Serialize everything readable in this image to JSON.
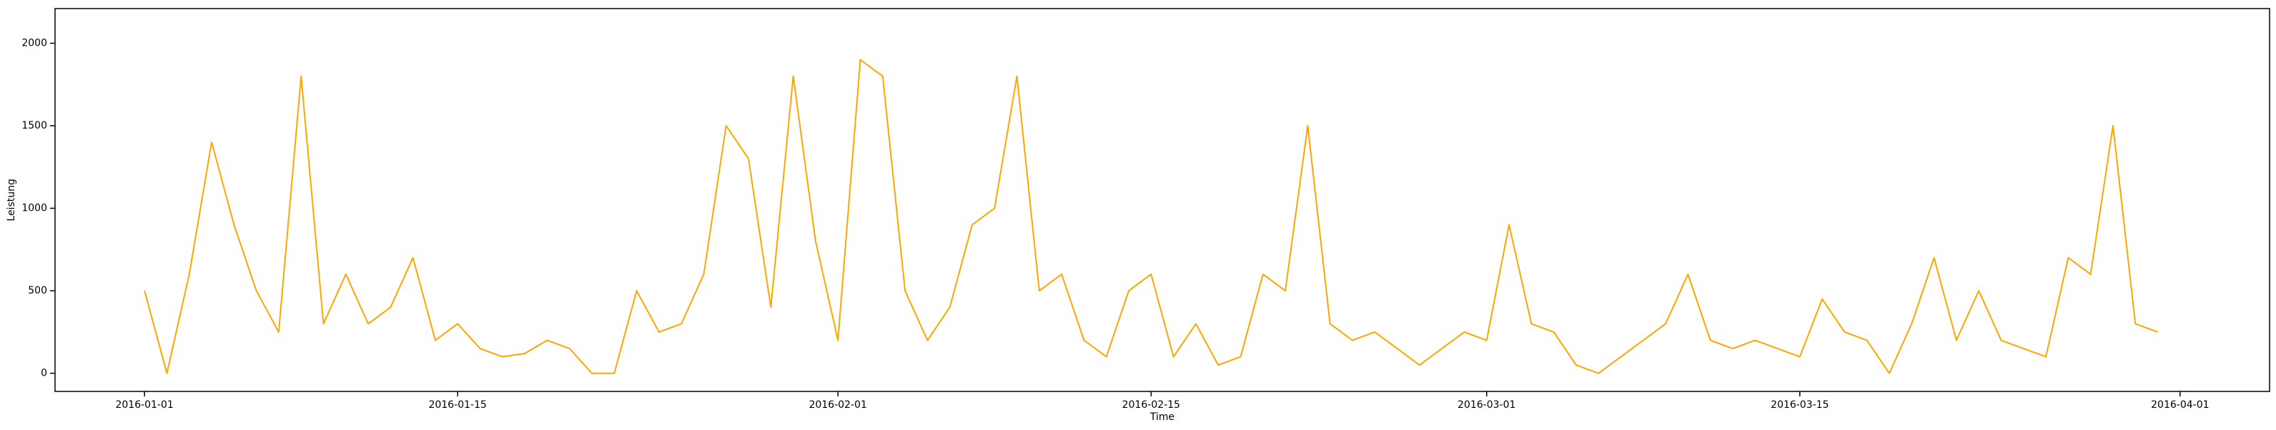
{
  "chart_data": {
    "type": "line",
    "xlabel": "Time",
    "ylabel": "Leistung",
    "x": [
      "2016-01-01",
      "2016-01-02",
      "2016-01-03",
      "2016-01-04",
      "2016-01-05",
      "2016-01-06",
      "2016-01-07",
      "2016-01-08",
      "2016-01-09",
      "2016-01-10",
      "2016-01-11",
      "2016-01-12",
      "2016-01-13",
      "2016-01-14",
      "2016-01-15",
      "2016-01-16",
      "2016-01-17",
      "2016-01-18",
      "2016-01-19",
      "2016-01-20",
      "2016-01-21",
      "2016-01-22",
      "2016-01-23",
      "2016-01-24",
      "2016-01-25",
      "2016-01-26",
      "2016-01-27",
      "2016-01-28",
      "2016-01-29",
      "2016-01-30",
      "2016-01-31",
      "2016-02-01",
      "2016-02-02",
      "2016-02-03",
      "2016-02-04",
      "2016-02-05",
      "2016-02-06",
      "2016-02-07",
      "2016-02-08",
      "2016-02-09",
      "2016-02-10",
      "2016-02-11",
      "2016-02-12",
      "2016-02-13",
      "2016-02-14",
      "2016-02-15",
      "2016-02-16",
      "2016-02-17",
      "2016-02-18",
      "2016-02-19",
      "2016-02-20",
      "2016-02-21",
      "2016-02-22",
      "2016-02-23",
      "2016-02-24",
      "2016-02-25",
      "2016-02-26",
      "2016-02-27",
      "2016-02-28",
      "2016-02-29",
      "2016-03-01",
      "2016-03-02",
      "2016-03-03",
      "2016-03-04",
      "2016-03-05",
      "2016-03-06",
      "2016-03-07",
      "2016-03-08",
      "2016-03-09",
      "2016-03-10",
      "2016-03-11",
      "2016-03-12",
      "2016-03-13",
      "2016-03-14",
      "2016-03-15",
      "2016-03-16",
      "2016-03-17",
      "2016-03-18",
      "2016-03-19",
      "2016-03-20",
      "2016-03-21",
      "2016-03-22",
      "2016-03-23",
      "2016-03-24",
      "2016-03-25",
      "2016-03-26",
      "2016-03-27",
      "2016-03-28",
      "2016-03-29",
      "2016-03-30",
      "2016-03-31"
    ],
    "series": [
      {
        "color": "#ffa500",
        "values": [
          500,
          0,
          600,
          1400,
          900,
          500,
          250,
          1800,
          300,
          600,
          300,
          400,
          700,
          200,
          300,
          150,
          100,
          120,
          200,
          150,
          0,
          0,
          500,
          250,
          300,
          600,
          1500,
          1300,
          400,
          1800,
          800,
          200,
          1900,
          1800,
          500,
          200,
          400,
          900,
          1000,
          1800,
          500,
          600,
          200,
          100,
          500,
          600,
          100,
          300,
          50,
          100,
          600,
          500,
          1500,
          300,
          200,
          250,
          150,
          50,
          150,
          250,
          200,
          900,
          300,
          250,
          50,
          0,
          100,
          200,
          300,
          600,
          200,
          150,
          200,
          150,
          100,
          450,
          250,
          200,
          0,
          300,
          700,
          200,
          500,
          200,
          150,
          100,
          700,
          600,
          1500,
          300,
          250
        ]
      }
    ],
    "xlim": [
      "2015-12-28",
      "2016-04-05"
    ],
    "xticks": [
      "2016-01-01",
      "2016-01-15",
      "2016-02-01",
      "2016-02-15",
      "2016-03-01",
      "2016-03-15",
      "2016-04-01"
    ],
    "ylim": [
      -110,
      2210
    ],
    "yticks": [
      0,
      500,
      1000,
      1500,
      2000
    ]
  }
}
